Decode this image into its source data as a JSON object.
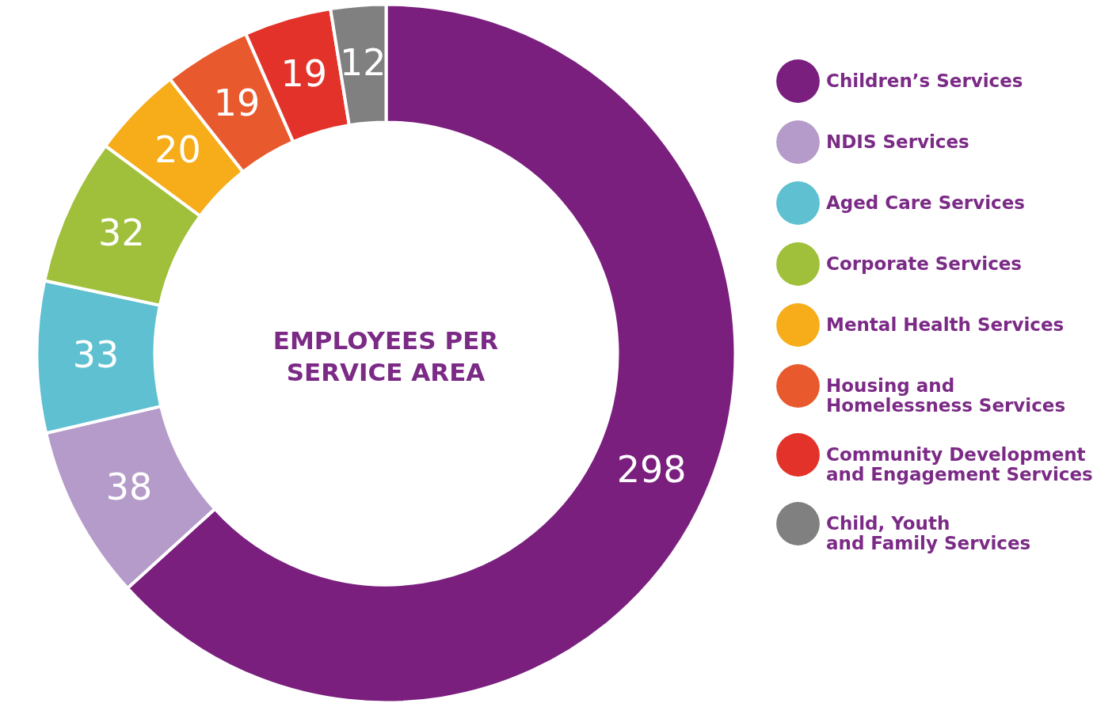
{
  "chart_data": {
    "type": "donut",
    "title": "EMPLOYEES PER\nSERVICE AREA",
    "categories": [
      "Children’s Services",
      "NDIS Services",
      "Aged Care Services",
      "Corporate Services",
      "Mental Health Services",
      "Housing and\nHomelessness Services",
      "Community Development\nand Engagement Services",
      "Child, Youth\nand Family Services"
    ],
    "values": [
      298,
      38,
      33,
      32,
      20,
      19,
      19,
      12
    ],
    "colors": [
      "#7a1f7e",
      "#b59bc9",
      "#5ec0d0",
      "#a0c03b",
      "#f6ad19",
      "#e85a2e",
      "#e3322a",
      "#808080"
    ],
    "data_labels": true,
    "legend": "right"
  }
}
